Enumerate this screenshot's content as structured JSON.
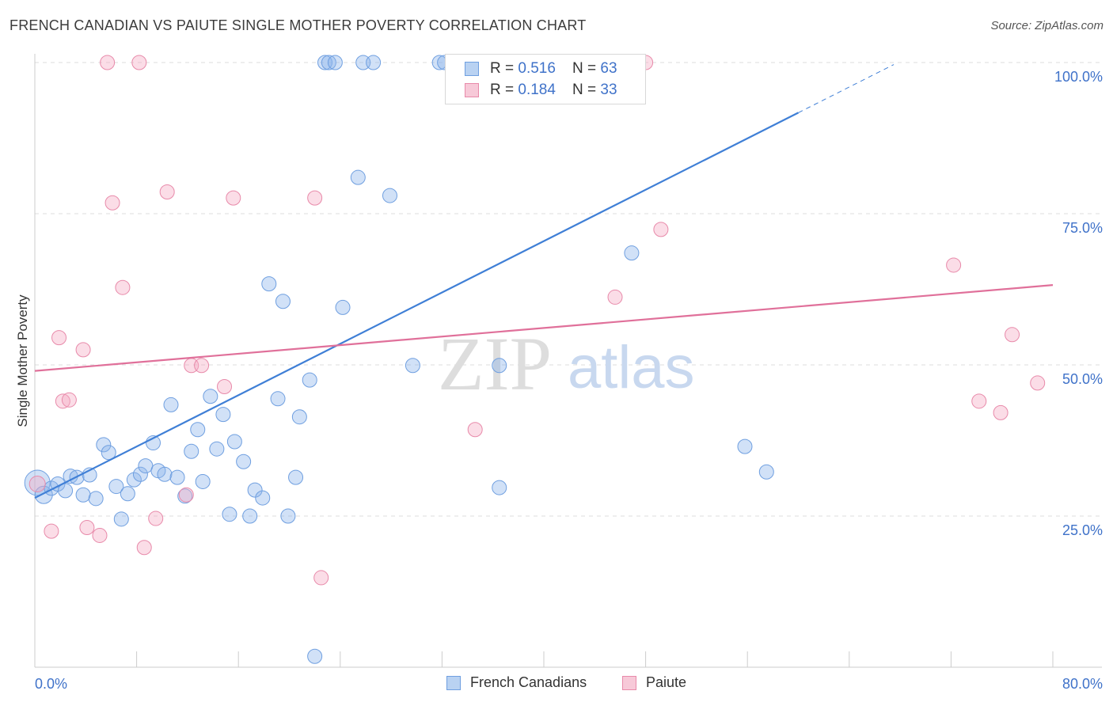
{
  "title": "FRENCH CANADIAN VS PAIUTE SINGLE MOTHER POVERTY CORRELATION CHART",
  "source": "Source: ZipAtlas.com",
  "watermark": {
    "zip": "ZIP",
    "atlas": "atlas"
  },
  "legend": {
    "rows": [
      {
        "r_label": "R = ",
        "r_value": "0.516",
        "n_label": "N = ",
        "n_value": "63"
      },
      {
        "r_label": "R = ",
        "r_value": "0.184",
        "n_label": "N = ",
        "n_value": "33"
      }
    ]
  },
  "chart_data": {
    "type": "scatter",
    "title": "FRENCH CANADIAN VS PAIUTE SINGLE MOTHER POVERTY CORRELATION CHART",
    "xlabel": "",
    "ylabel": "Single Mother Poverty",
    "xlim": [
      0,
      80
    ],
    "ylim": [
      0,
      100
    ],
    "x_tick_labels": [
      "0.0%",
      "80.0%"
    ],
    "y_tick_labels": [
      "25.0%",
      "50.0%",
      "75.0%",
      "100.0%"
    ],
    "y_ticks": [
      25,
      50,
      75,
      100
    ],
    "grid": "horizontal dashed",
    "legend_position": "top-center",
    "colors": {
      "french_canadians": "#3f7fd6",
      "paiute": "#e0709a"
    },
    "series": [
      {
        "name": "French Canadians",
        "color": "#3f7fd6",
        "points": [
          [
            0.2,
            30.5,
            16
          ],
          [
            0.7,
            28.5,
            11
          ],
          [
            1.3,
            29.6,
            9
          ],
          [
            1.8,
            30.3,
            9
          ],
          [
            2.4,
            29.2,
            9
          ],
          [
            2.8,
            31.6,
            9
          ],
          [
            3.3,
            31.4,
            9
          ],
          [
            3.8,
            28.5,
            9
          ],
          [
            4.3,
            31.8,
            9
          ],
          [
            4.8,
            27.9,
            9
          ],
          [
            5.4,
            36.8,
            9
          ],
          [
            5.8,
            35.5,
            9
          ],
          [
            6.4,
            29.9,
            9
          ],
          [
            6.8,
            24.5,
            9
          ],
          [
            7.3,
            28.7,
            9
          ],
          [
            7.8,
            31.0,
            9
          ],
          [
            8.3,
            31.9,
            9
          ],
          [
            8.7,
            33.3,
            9
          ],
          [
            9.3,
            37.1,
            9
          ],
          [
            9.7,
            32.5,
            9
          ],
          [
            10.2,
            31.9,
            9
          ],
          [
            10.7,
            43.4,
            9
          ],
          [
            11.2,
            31.4,
            9
          ],
          [
            11.8,
            28.3,
            9
          ],
          [
            12.3,
            35.7,
            9
          ],
          [
            12.8,
            39.3,
            9
          ],
          [
            13.2,
            30.7,
            9
          ],
          [
            13.8,
            44.8,
            9
          ],
          [
            14.3,
            36.1,
            9
          ],
          [
            14.8,
            41.8,
            9
          ],
          [
            15.3,
            25.3,
            9
          ],
          [
            15.7,
            37.3,
            9
          ],
          [
            16.4,
            34.0,
            9
          ],
          [
            16.9,
            25.0,
            9
          ],
          [
            17.3,
            29.3,
            9
          ],
          [
            17.9,
            28.0,
            9
          ],
          [
            18.4,
            63.4,
            9
          ],
          [
            19.1,
            44.4,
            9
          ],
          [
            19.5,
            60.5,
            9
          ],
          [
            19.9,
            25.0,
            9
          ],
          [
            20.5,
            31.4,
            9
          ],
          [
            20.8,
            41.4,
            9
          ],
          [
            21.6,
            47.5,
            9
          ],
          [
            22.0,
            1.8,
            9
          ],
          [
            22.8,
            100.0,
            9
          ],
          [
            23.1,
            100.0,
            9
          ],
          [
            23.6,
            100.0,
            9
          ],
          [
            24.2,
            59.5,
            9
          ],
          [
            25.4,
            81.0,
            9
          ],
          [
            25.8,
            100.0,
            9
          ],
          [
            26.6,
            100.0,
            9
          ],
          [
            27.9,
            78.0,
            9
          ],
          [
            29.7,
            49.9,
            9
          ],
          [
            31.8,
            100.0,
            9
          ],
          [
            32.2,
            100.0,
            9
          ],
          [
            34.0,
            100.0,
            9
          ],
          [
            36.5,
            49.9,
            9
          ],
          [
            36.5,
            29.7,
            9
          ],
          [
            38.3,
            100.0,
            9
          ],
          [
            46.9,
            68.5,
            9
          ],
          [
            55.8,
            36.5,
            9
          ],
          [
            57.5,
            32.3,
            9
          ],
          [
            44.6,
            100.0,
            9
          ]
        ]
      },
      {
        "name": "Paiute",
        "color": "#e0709a",
        "points": [
          [
            0.2,
            30.3,
            10
          ],
          [
            1.3,
            22.5,
            9
          ],
          [
            1.9,
            54.5,
            9
          ],
          [
            2.2,
            44.0,
            9
          ],
          [
            2.7,
            44.2,
            9
          ],
          [
            3.8,
            52.5,
            9
          ],
          [
            4.1,
            23.1,
            9
          ],
          [
            5.1,
            21.8,
            9
          ],
          [
            5.7,
            100.0,
            9
          ],
          [
            6.1,
            76.8,
            9
          ],
          [
            6.9,
            62.8,
            9
          ],
          [
            8.2,
            100.0,
            9
          ],
          [
            8.6,
            19.8,
            9
          ],
          [
            9.5,
            24.6,
            9
          ],
          [
            10.4,
            78.6,
            9
          ],
          [
            11.9,
            28.5,
            9
          ],
          [
            12.3,
            49.9,
            9
          ],
          [
            13.1,
            49.9,
            9
          ],
          [
            14.9,
            46.4,
            9
          ],
          [
            15.6,
            77.6,
            9
          ],
          [
            22.0,
            77.6,
            9
          ],
          [
            22.5,
            14.8,
            9
          ],
          [
            34.6,
            39.3,
            9
          ],
          [
            45.6,
            61.2,
            9
          ],
          [
            48.0,
            100.0,
            9
          ],
          [
            49.2,
            72.4,
            9
          ],
          [
            72.2,
            66.5,
            9
          ],
          [
            74.2,
            44.0,
            9
          ],
          [
            75.9,
            42.1,
            9
          ],
          [
            76.8,
            55.0,
            9
          ],
          [
            78.8,
            47.0,
            9
          ],
          [
            36.8,
            100.0,
            9
          ],
          [
            47.2,
            100.0,
            9
          ]
        ]
      }
    ],
    "trendlines": [
      {
        "series": "French Canadians",
        "x": [
          0,
          60
        ],
        "y": [
          28.0,
          91.7
        ],
        "dashed_extension_to_x": 67.5
      },
      {
        "series": "Paiute",
        "x": [
          0,
          80
        ],
        "y": [
          49.0,
          63.2
        ]
      }
    ]
  }
}
